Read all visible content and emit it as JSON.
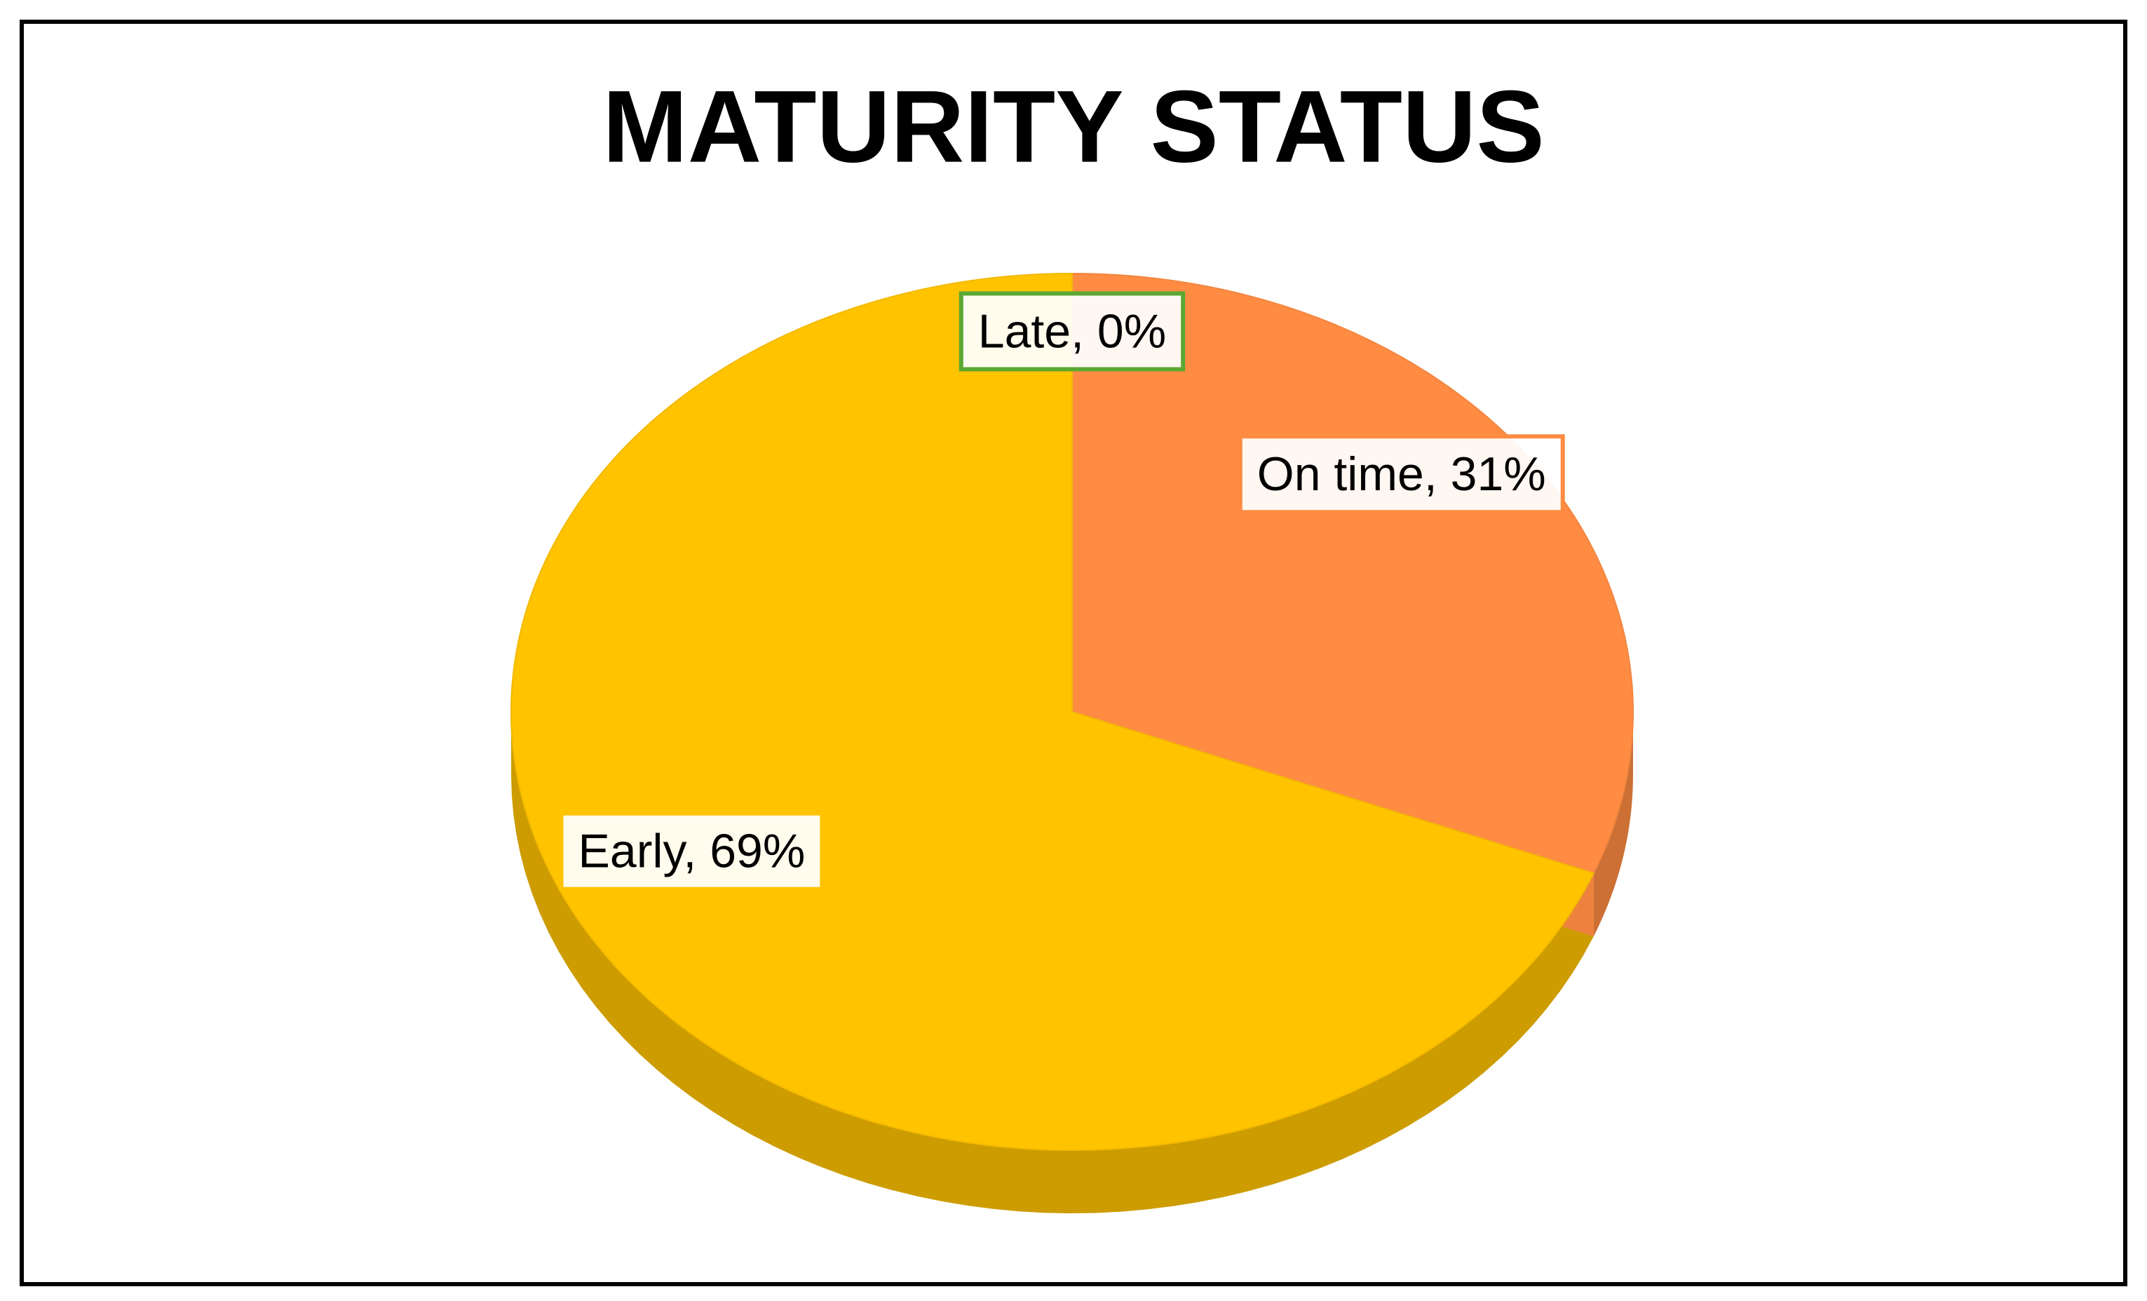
{
  "chart_data": {
    "type": "pie",
    "title": "MATURITY STATUS",
    "values": [
      0,
      31,
      69
    ],
    "value_labels": [
      "Late, 0%",
      "On time, 31%",
      "Early, 69%"
    ],
    "colors": [
      "#5aa832",
      "#ff8c42",
      "#ffc300"
    ]
  }
}
